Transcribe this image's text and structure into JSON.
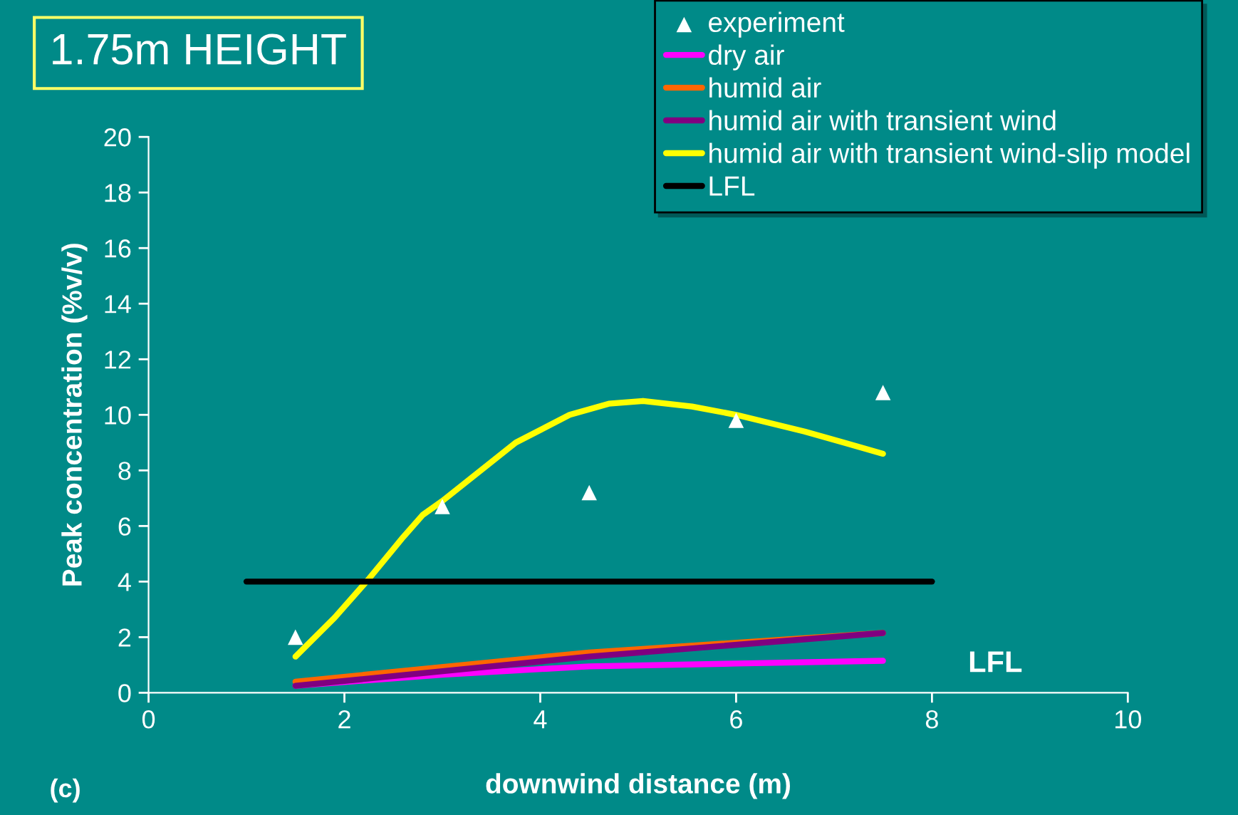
{
  "chart_data": {
    "type": "line",
    "title": "1.75m HEIGHT",
    "xlabel": "downwind distance (m)",
    "ylabel": "Peak concentration (%v/v)",
    "xlim": [
      0,
      10
    ],
    "xticks": [
      0,
      2,
      4,
      6,
      8,
      10
    ],
    "ylim": [
      0,
      20
    ],
    "yticks": [
      0,
      2,
      4,
      6,
      8,
      10,
      12,
      14,
      16,
      18,
      20
    ],
    "grid": false,
    "legend": "top right",
    "annotations": [
      "LFL",
      "(c)"
    ],
    "series": [
      {
        "name": "experiment",
        "type": "scatter",
        "marker": "triangle",
        "color": "#ffffff",
        "x": [
          1.5,
          3,
          4.5,
          6,
          7.5
        ],
        "values": [
          2.0,
          6.7,
          7.2,
          9.8,
          10.8
        ]
      },
      {
        "name": "dry air",
        "color": "#ff00ff",
        "x": [
          1.5,
          3,
          4.5,
          6,
          7.5
        ],
        "values": [
          0.25,
          0.65,
          0.95,
          1.05,
          1.15
        ]
      },
      {
        "name": "humid air",
        "color": "#ff6600",
        "x": [
          1.5,
          4.5,
          7.5
        ],
        "values": [
          0.4,
          1.45,
          2.15
        ]
      },
      {
        "name": "humid air with transient wind",
        "color": "#800080",
        "x": [
          1.5,
          4.5,
          7.5
        ],
        "values": [
          0.25,
          1.3,
          2.15
        ]
      },
      {
        "name": "humid air with transient wind-slip model",
        "color": "#ffff00",
        "x": [
          1.5,
          1.9,
          2.25,
          2.6,
          2.8,
          3.0,
          3.75,
          4.3,
          4.7,
          5.05,
          5.55,
          6.0,
          6.7,
          7.1,
          7.5
        ],
        "values": [
          1.3,
          2.7,
          4.1,
          5.6,
          6.4,
          6.9,
          9.0,
          10.0,
          10.4,
          10.5,
          10.3,
          10.0,
          9.4,
          9.0,
          8.6
        ]
      },
      {
        "name": "LFL",
        "color": "#000000",
        "x": [
          1,
          8
        ],
        "values": [
          4,
          4
        ]
      }
    ]
  }
}
